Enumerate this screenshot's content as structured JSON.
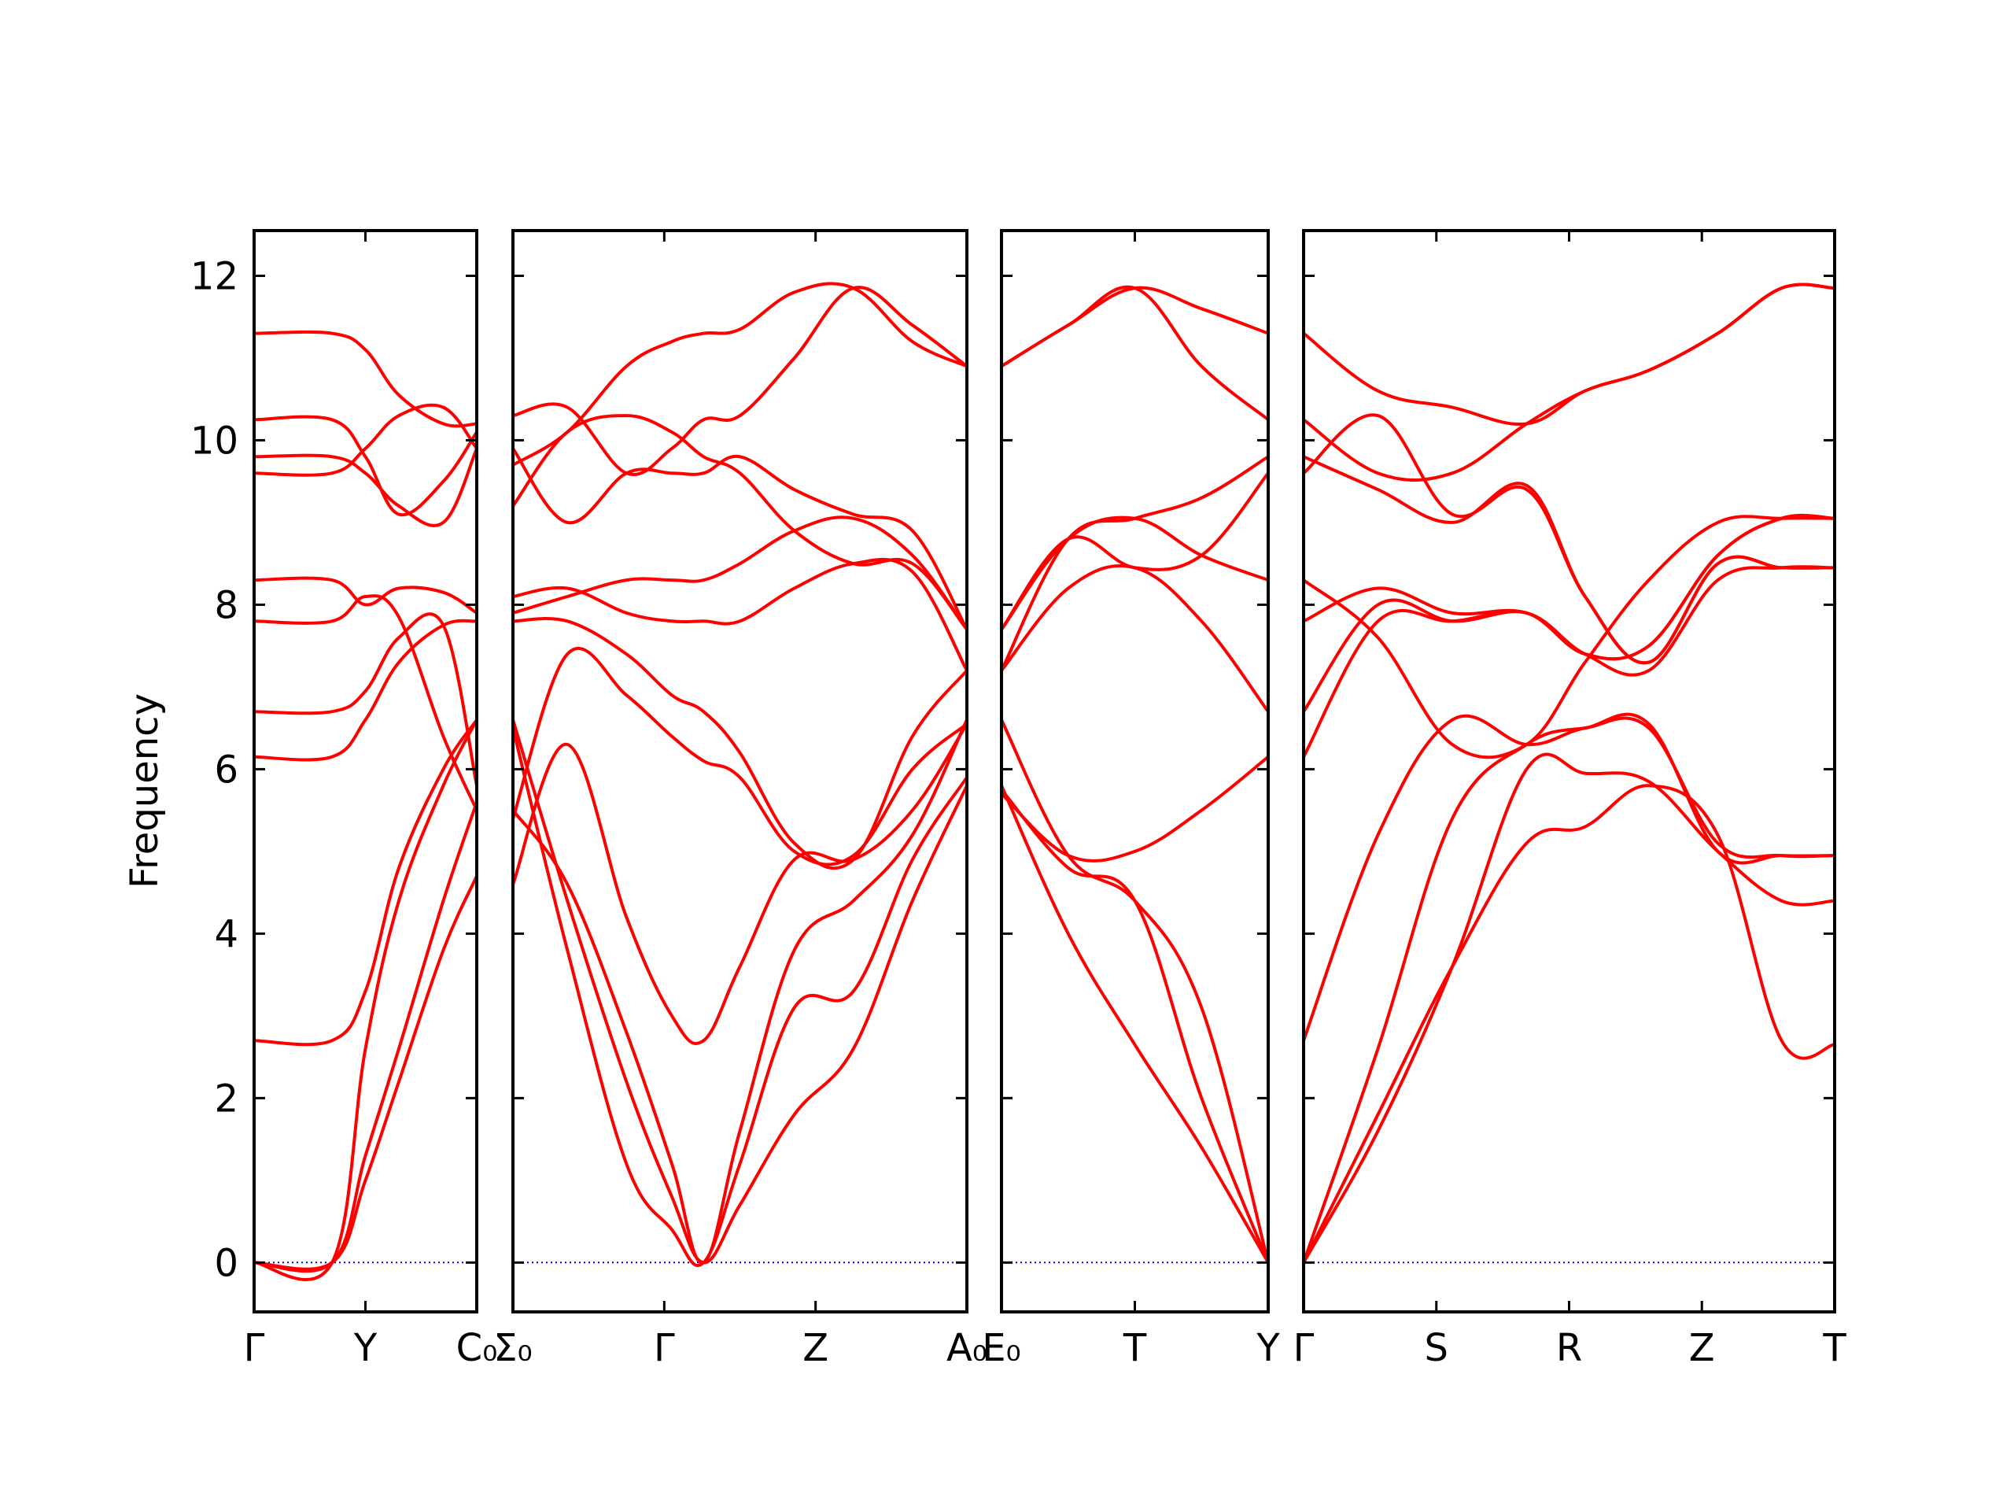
{
  "chart_data": {
    "type": "line",
    "title": "",
    "xlabel": "",
    "ylabel": "Frequency",
    "ylim": [
      -0.6,
      12.55
    ],
    "yticks": [
      0,
      2,
      4,
      6,
      8,
      10,
      12
    ],
    "grid": false,
    "legend": "none",
    "colors": {
      "bands": "#ff0000",
      "zero_line": "#0000cc",
      "axes": "#000000"
    },
    "panels": [
      {
        "labels": [
          "Γ",
          "Y",
          "C₀"
        ],
        "x": [
          0,
          0.35,
          0.5,
          0.65,
          0.85,
          1
        ],
        "bands": [
          [
            0,
            0,
            1.3,
            2.6,
            4.4,
            5.6
          ],
          [
            0,
            0,
            1.0,
            2.2,
            3.8,
            4.7
          ],
          [
            0,
            0,
            2.6,
            4.4,
            5.8,
            6.6
          ],
          [
            2.7,
            2.7,
            3.3,
            4.8,
            6.0,
            6.6
          ],
          [
            6.15,
            6.15,
            6.6,
            7.3,
            7.75,
            7.8
          ],
          [
            6.7,
            6.7,
            6.95,
            7.6,
            7.75,
            5.8
          ],
          [
            7.8,
            7.8,
            8.1,
            7.85,
            6.4,
            5.5
          ],
          [
            8.3,
            8.3,
            8.0,
            8.2,
            8.15,
            7.9
          ],
          [
            9.6,
            9.6,
            9.9,
            10.3,
            10.4,
            9.9
          ],
          [
            9.8,
            9.8,
            9.6,
            9.2,
            9.0,
            9.9
          ],
          [
            10.25,
            10.25,
            9.8,
            9.1,
            9.5,
            10.1
          ],
          [
            11.3,
            11.3,
            11.1,
            10.55,
            10.2,
            10.2
          ]
        ]
      },
      {
        "labels": [
          "Σ₀",
          "Γ",
          "Z",
          "A₀"
        ],
        "x": [
          0,
          0.12,
          0.25,
          0.35,
          0.42,
          0.5,
          0.62,
          0.75,
          0.88,
          1
        ],
        "bands": [
          [
            6.6,
            4.4,
            2.2,
            0.8,
            0,
            0.7,
            1.8,
            2.6,
            4.4,
            5.8
          ],
          [
            6.5,
            3.8,
            1.2,
            0.4,
            0,
            1.2,
            3.1,
            3.3,
            4.9,
            5.9
          ],
          [
            5.5,
            4.6,
            2.8,
            1.2,
            0,
            1.6,
            3.8,
            4.4,
            5.2,
            6.6
          ],
          [
            4.6,
            6.3,
            4.2,
            3.0,
            2.7,
            3.6,
            4.9,
            4.9,
            5.5,
            6.55
          ],
          [
            5.4,
            7.4,
            6.9,
            6.4,
            6.1,
            5.9,
            5.0,
            4.95,
            6.0,
            6.55
          ],
          [
            7.8,
            7.8,
            7.4,
            6.9,
            6.7,
            6.2,
            5.1,
            4.9,
            6.4,
            7.2
          ],
          [
            8.1,
            8.2,
            7.9,
            7.8,
            7.8,
            7.8,
            8.2,
            8.5,
            8.4,
            7.2
          ],
          [
            7.9,
            8.1,
            8.3,
            8.3,
            8.3,
            8.5,
            8.9,
            9.05,
            8.6,
            7.7
          ],
          [
            9.2,
            10.1,
            10.3,
            10.1,
            9.8,
            9.6,
            8.9,
            8.5,
            8.5,
            7.7
          ],
          [
            9.9,
            9.0,
            9.6,
            9.6,
            9.6,
            9.8,
            9.4,
            9.1,
            8.9,
            7.7
          ],
          [
            10.3,
            10.4,
            9.6,
            9.9,
            10.25,
            10.3,
            11.0,
            11.85,
            11.4,
            10.9
          ],
          [
            9.7,
            10.1,
            10.9,
            11.2,
            11.3,
            11.35,
            11.8,
            11.85,
            11.2,
            10.9
          ]
        ]
      },
      {
        "labels": [
          "E₀",
          "T",
          "Y"
        ],
        "x": [
          0,
          0.25,
          0.5,
          0.75,
          1
        ],
        "bands": [
          [
            5.8,
            4.0,
            2.65,
            1.4,
            0
          ],
          [
            5.75,
            4.8,
            4.4,
            2.0,
            0
          ],
          [
            6.6,
            4.95,
            4.4,
            3.1,
            0
          ],
          [
            5.7,
            4.95,
            5.0,
            5.5,
            6.15
          ],
          [
            7.2,
            8.2,
            8.45,
            7.8,
            6.7
          ],
          [
            7.7,
            8.8,
            8.45,
            8.6,
            9.6
          ],
          [
            7.2,
            8.8,
            9.05,
            9.3,
            9.8
          ],
          [
            7.7,
            8.8,
            9.05,
            8.6,
            8.3
          ],
          [
            10.9,
            11.4,
            11.85,
            10.9,
            10.25
          ],
          [
            10.9,
            11.4,
            11.85,
            11.6,
            11.3
          ]
        ]
      },
      {
        "labels": [
          "Γ",
          "S",
          "R",
          "Z",
          "T"
        ],
        "x": [
          0,
          0.14,
          0.28,
          0.42,
          0.53,
          0.65,
          0.78,
          0.9,
          1
        ],
        "bands": [
          [
            0,
            1.8,
            3.6,
            5.1,
            5.3,
            5.8,
            5.2,
            2.7,
            2.65
          ],
          [
            0,
            1.6,
            3.6,
            6.0,
            5.95,
            5.85,
            5.0,
            4.4,
            4.4
          ],
          [
            0,
            2.6,
            5.4,
            6.3,
            6.5,
            6.5,
            5.1,
            4.95,
            4.95
          ],
          [
            2.7,
            5.2,
            6.6,
            6.3,
            6.5,
            6.55,
            5.0,
            4.95,
            4.95
          ],
          [
            6.15,
            7.8,
            7.8,
            7.9,
            7.4,
            7.2,
            8.3,
            8.45,
            8.45
          ],
          [
            6.7,
            8.0,
            7.8,
            7.9,
            7.4,
            7.5,
            8.6,
            9.05,
            9.05
          ],
          [
            7.8,
            8.2,
            7.9,
            7.9,
            7.4,
            7.5,
            8.6,
            9.05,
            9.05
          ],
          [
            8.3,
            7.6,
            6.3,
            6.3,
            7.3,
            8.3,
            9.0,
            9.05,
            9.05
          ],
          [
            9.6,
            10.3,
            9.1,
            9.4,
            8.1,
            7.3,
            8.5,
            8.45,
            8.45
          ],
          [
            9.8,
            9.4,
            9.0,
            9.45,
            8.1,
            7.3,
            8.5,
            8.45,
            8.45
          ],
          [
            10.25,
            9.6,
            9.6,
            10.2,
            10.6,
            10.85,
            11.3,
            11.85,
            11.85
          ],
          [
            11.3,
            10.6,
            10.4,
            10.2,
            10.6,
            10.85,
            11.3,
            11.85,
            11.85
          ]
        ]
      }
    ]
  }
}
